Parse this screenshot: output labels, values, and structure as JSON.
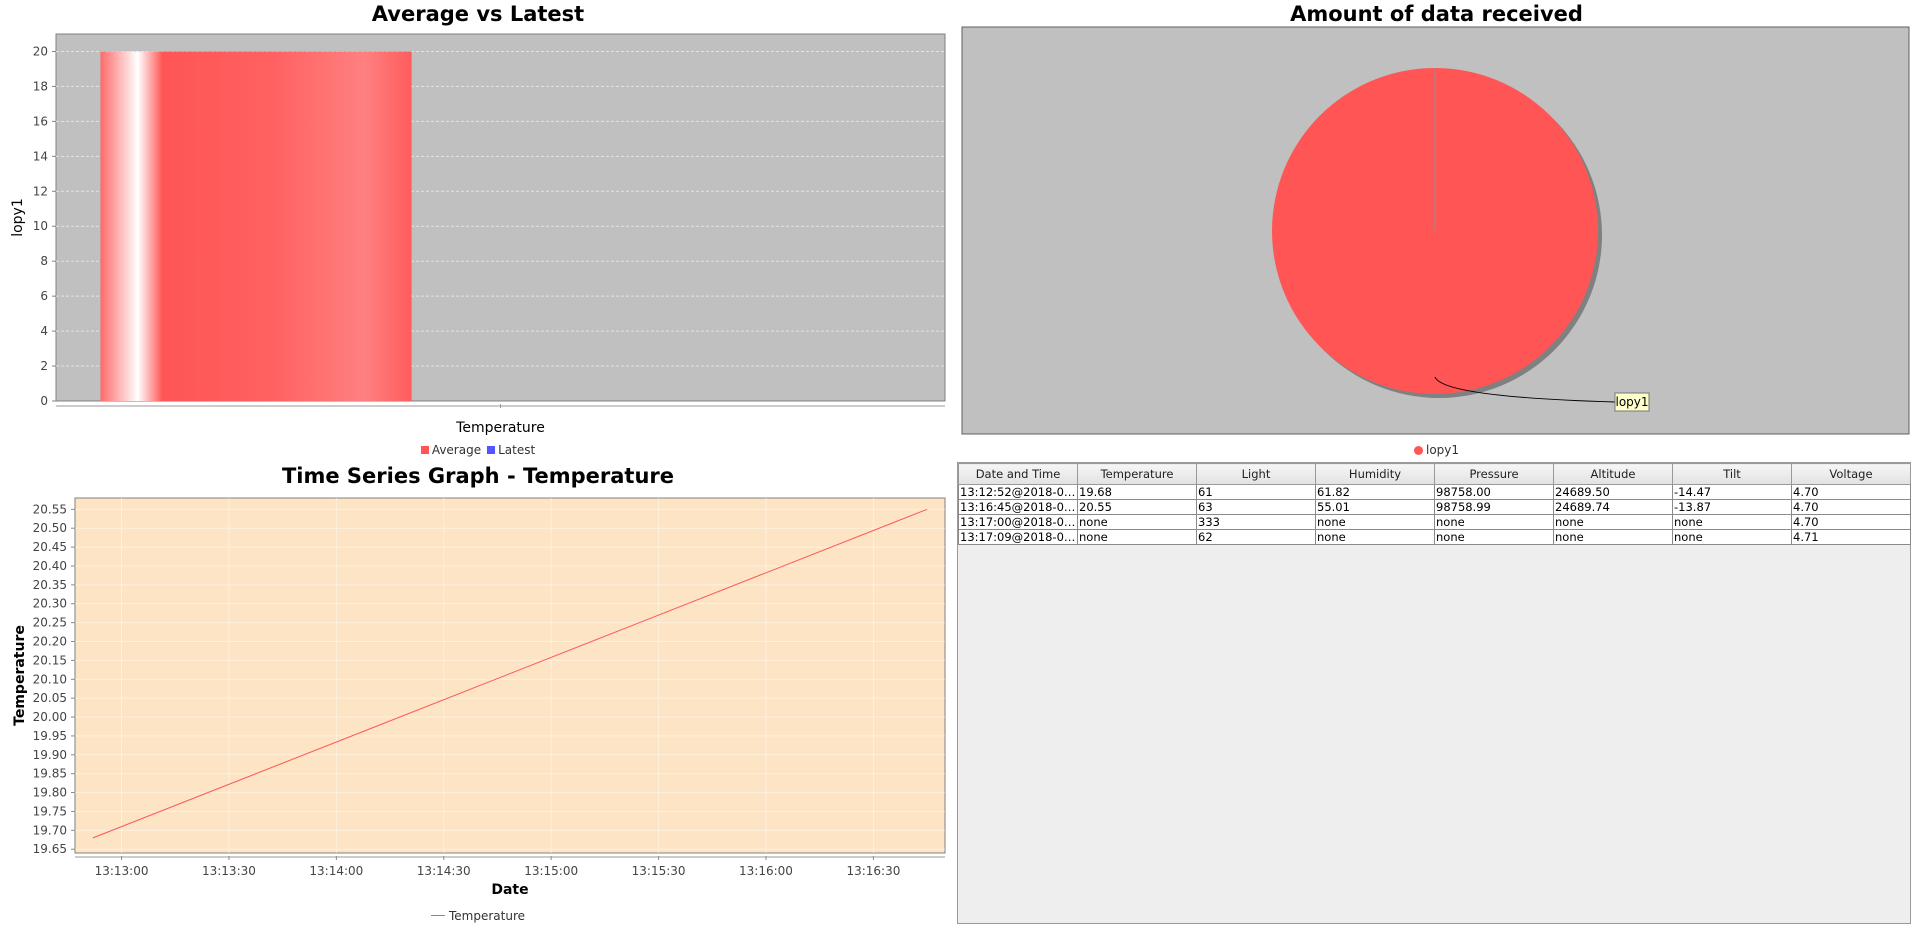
{
  "bar_chart": {
    "title": "Average vs Latest",
    "legend": [
      {
        "label": "Average",
        "color": "#ff5555"
      },
      {
        "label": "Latest",
        "color": "#5555ff"
      }
    ],
    "chart_data": {
      "type": "bar",
      "categories": [
        "Temperature"
      ],
      "series": [
        {
          "name": "Average",
          "values": [
            20
          ]
        },
        {
          "name": "Latest",
          "values": [
            0
          ]
        }
      ],
      "xlabel": "Temperature",
      "ylabel": "lopy1",
      "ylim": [
        0,
        21
      ],
      "yticks": [
        0,
        2,
        4,
        6,
        8,
        10,
        12,
        14,
        16,
        18,
        20
      ],
      "grid": true
    }
  },
  "pie_chart": {
    "title": "Amount of data received",
    "legend": [
      {
        "label": "lopy1",
        "color": "#ff5555"
      }
    ],
    "slice_label": "lopy1",
    "chart_data": {
      "type": "pie",
      "slices": [
        {
          "label": "lopy1",
          "value": 100,
          "color": "#ff5555"
        }
      ]
    }
  },
  "line_chart": {
    "title": "Time Series Graph - Temperature",
    "legend": [
      {
        "label": "Temperature",
        "color": "#ff5555"
      }
    ],
    "chart_data": {
      "type": "line",
      "xlabel": "Date",
      "ylabel": "Temperature",
      "xticks": [
        "13:13:00",
        "13:13:30",
        "13:14:00",
        "13:14:30",
        "13:15:00",
        "13:15:30",
        "13:16:00",
        "13:16:30"
      ],
      "yticks": [
        "19.65",
        "19.70",
        "19.75",
        "19.80",
        "19.85",
        "19.90",
        "19.95",
        "20.00",
        "20.05",
        "20.10",
        "20.15",
        "20.20",
        "20.25",
        "20.30",
        "20.35",
        "20.40",
        "20.45",
        "20.50",
        "20.55"
      ],
      "xlim": [
        "13:12:47",
        "13:16:50"
      ],
      "ylim": [
        19.64,
        20.58
      ],
      "series": [
        {
          "name": "Temperature",
          "x": [
            "13:12:52",
            "13:16:45"
          ],
          "y": [
            19.68,
            20.55
          ]
        }
      ],
      "grid": true
    }
  },
  "table": {
    "columns": [
      "Date and Time",
      "Temperature",
      "Light",
      "Humidity",
      "Pressure",
      "Altitude",
      "Tilt",
      "Voltage"
    ],
    "rows": [
      [
        "13:12:52@2018-03...",
        "19.68",
        "61",
        "61.82",
        "98758.00",
        "24689.50",
        "-14.47",
        "4.70"
      ],
      [
        "13:16:45@2018-03...",
        "20.55",
        "63",
        "55.01",
        "98758.99",
        "24689.74",
        "-13.87",
        "4.70"
      ],
      [
        "13:17:00@2018-03...",
        "none",
        "333",
        "none",
        "none",
        "none",
        "none",
        "4.70"
      ],
      [
        "13:17:09@2018-03...",
        "none",
        "62",
        "none",
        "none",
        "none",
        "none",
        "4.71"
      ]
    ]
  }
}
